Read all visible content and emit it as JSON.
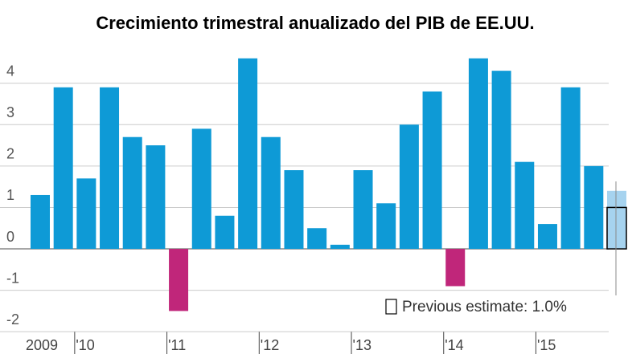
{
  "chart_data": {
    "type": "bar",
    "title": "Crecimiento trimestral anualizado del PIB de EE.UU.",
    "categories": [
      "2009",
      null,
      "'10",
      null,
      null,
      null,
      "'11",
      null,
      null,
      null,
      "'12",
      null,
      null,
      null,
      "'13",
      null,
      null,
      null,
      "'14",
      null,
      null,
      null,
      "'15",
      null,
      null,
      null
    ],
    "values": [
      1.3,
      3.9,
      1.7,
      3.9,
      2.7,
      2.5,
      -1.5,
      2.9,
      0.8,
      4.6,
      2.7,
      1.9,
      0.5,
      0.1,
      1.9,
      1.1,
      3.0,
      3.8,
      -0.9,
      4.6,
      4.3,
      2.1,
      0.6,
      3.9,
      2.0,
      1.4
    ],
    "colors": [
      "#0e9ad6",
      "#0e9ad6",
      "#0e9ad6",
      "#0e9ad6",
      "#0e9ad6",
      "#0e9ad6",
      "#c0267a",
      "#0e9ad6",
      "#0e9ad6",
      "#0e9ad6",
      "#0e9ad6",
      "#0e9ad6",
      "#0e9ad6",
      "#0e9ad6",
      "#0e9ad6",
      "#0e9ad6",
      "#0e9ad6",
      "#0e9ad6",
      "#c0267a",
      "#0e9ad6",
      "#0e9ad6",
      "#0e9ad6",
      "#0e9ad6",
      "#0e9ad6",
      "#0e9ad6",
      "#a6d3ef"
    ],
    "previous_estimate": {
      "value": 1.0,
      "label": "Previous estimate: 1.0%"
    },
    "ylim": [
      -2.1,
      4.9
    ],
    "yticks": [
      -2,
      -1,
      0,
      1,
      2,
      3,
      4
    ],
    "grid": true
  }
}
